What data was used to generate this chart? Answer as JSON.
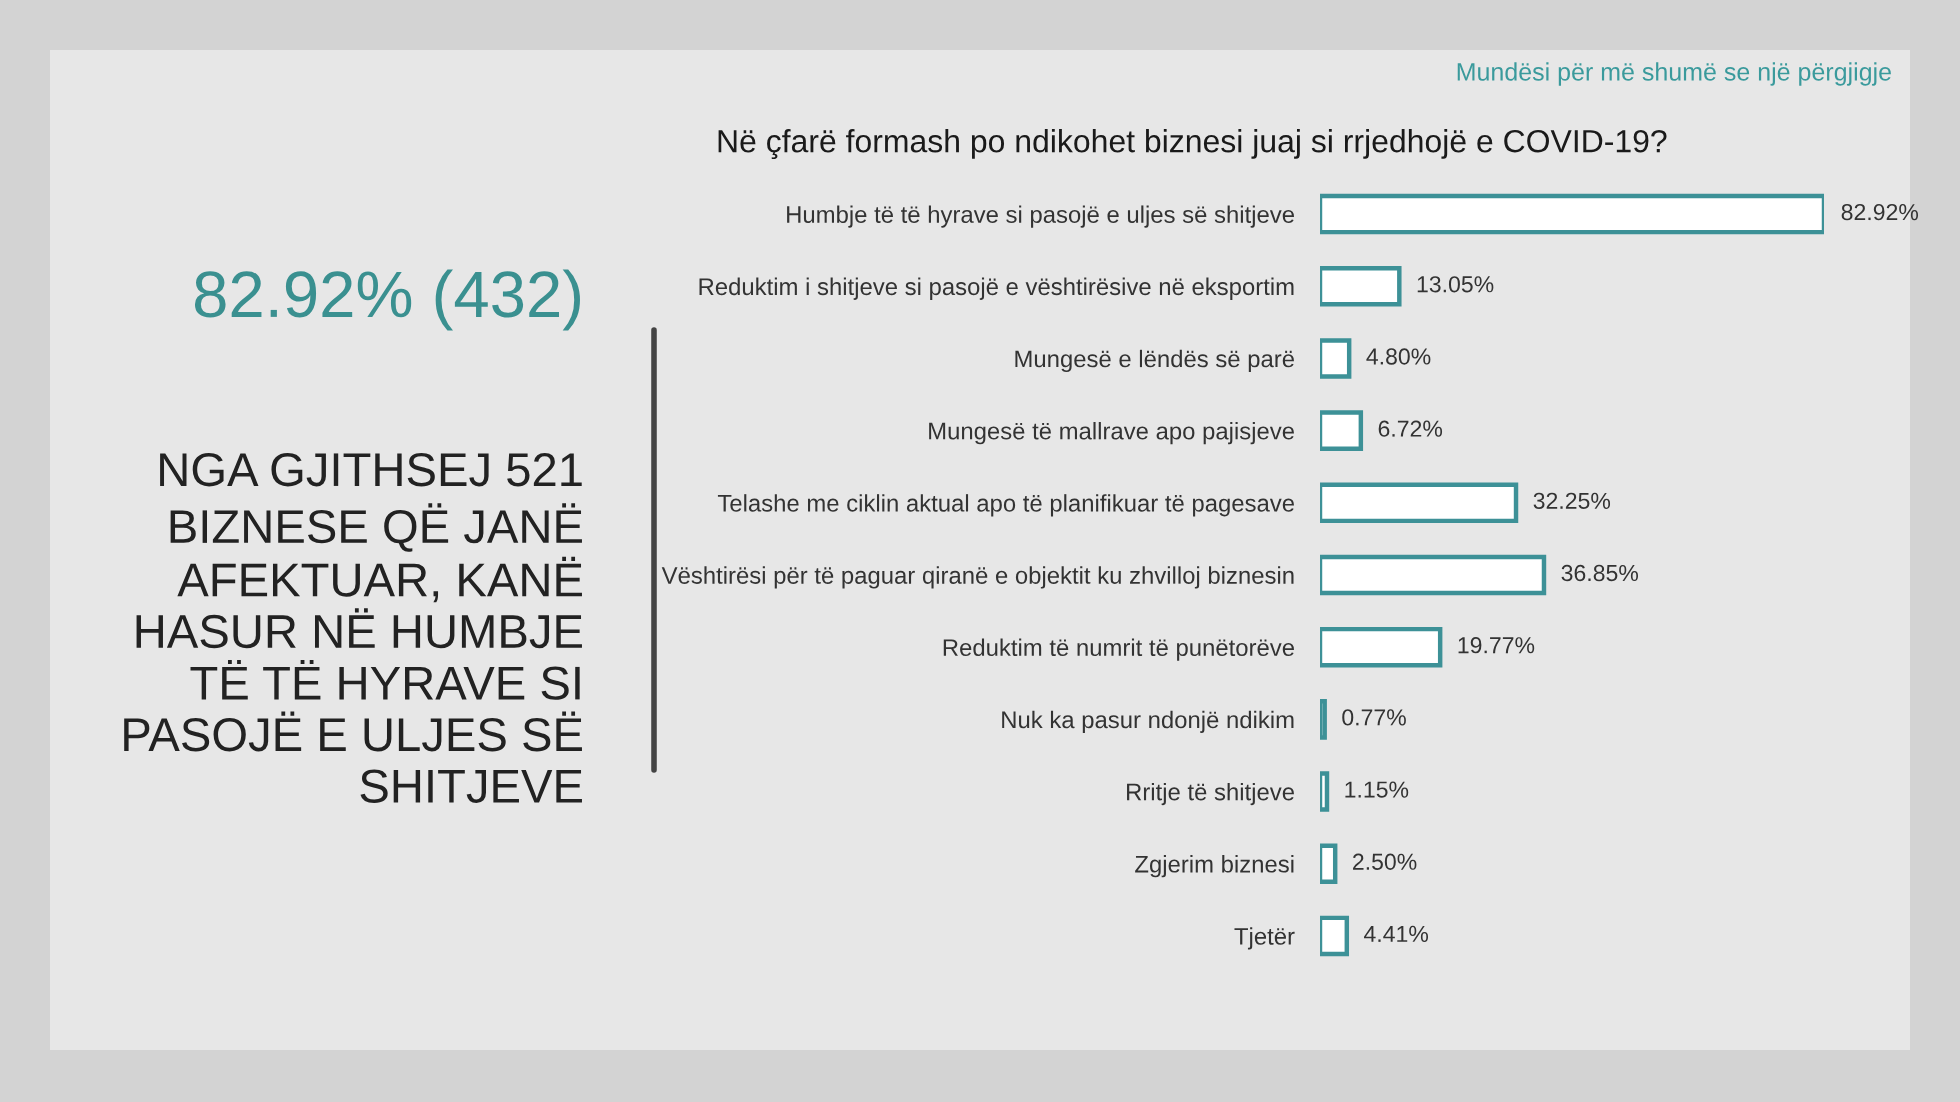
{
  "chart_data": {
    "type": "bar",
    "orientation": "horizontal",
    "title": "Në çfarë formash po ndikohet biznesi juaj si rrjedhojë e COVID-19?",
    "subtitle": "Mundësi për më shumë se një përgjigje",
    "annotations": [
      "82.92% (432)",
      "NGA GJITHSEJ 521\nBIZNESE QË JANË\nAFEKTUAR, KANË\nHASUR NË HUMBJE\nTË TË HYRAVE SI\nPASOJË E ULJES SË\nSHITJEVE"
    ],
    "categories": [
      "Humbje të të hyrave si pasojë e uljes së shitjeve",
      "Reduktim i shitjeve si pasojë e vështirësive në eksportim",
      "Mungesë e lëndës së parë",
      "Mungesë të mallrave apo pajisjeve",
      "Telashe me ciklin aktual apo të planifikuar të pagesave",
      "Vështirësi për të paguar qiranë e objektit ku zhvilloj biznesin",
      "Reduktim të numrit të punëtorëve",
      "Nuk ka pasur ndonjë ndikim",
      "Rritje të shitjeve",
      "Zgjerim biznesi",
      "Tjetër"
    ],
    "values": [
      82.92,
      13.05,
      4.8,
      6.72,
      32.25,
      36.85,
      19.77,
      0.77,
      1.15,
      2.5,
      4.41
    ],
    "value_labels": [
      "82.92%",
      "13.05%",
      "4.80%",
      "6.72%",
      "32.25%",
      "36.85%",
      "19.77%",
      "0.77%",
      "1.15%",
      "2.50%",
      "4.41%"
    ],
    "color": "#ffffff",
    "tick_labels": "y"
  }
}
